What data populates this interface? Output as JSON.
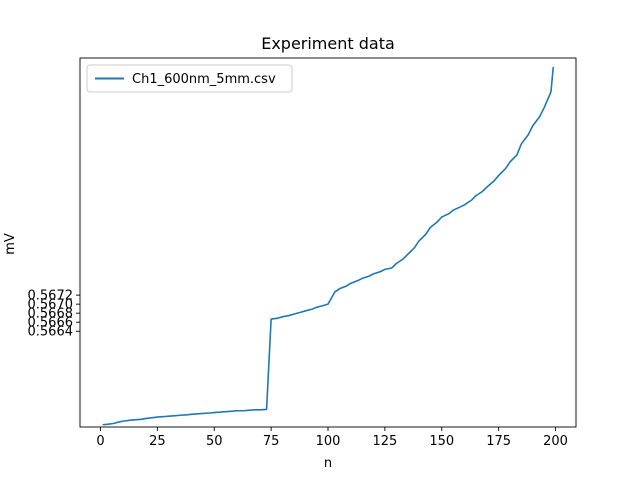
{
  "chart_data": {
    "type": "line",
    "title": "Experiment data",
    "xlabel": "n",
    "ylabel": "mV",
    "xlim": [
      -9,
      209
    ],
    "ylim": [
      0.56428,
      0.57245
    ],
    "grid": false,
    "legend_position": "top-left",
    "x_ticks": [
      0,
      25,
      50,
      75,
      100,
      125,
      150,
      175,
      200
    ],
    "x_tick_labels": [
      "0",
      "25",
      "50",
      "75",
      "100",
      "125",
      "150",
      "175",
      "200"
    ],
    "y_ticks": [
      0.5664,
      0.5666,
      0.5668,
      0.567,
      0.5672
    ],
    "y_tick_labels": [
      "0.5664",
      "0.5666",
      "0.5668",
      "0.5670",
      "0.5672"
    ],
    "series": [
      {
        "name": "Ch1_600nm_5mm.csv",
        "color": "#1f77b4",
        "x": [
          1,
          3,
          6,
          8,
          10,
          13,
          15,
          18,
          20,
          22,
          25,
          28,
          30,
          33,
          35,
          38,
          40,
          42,
          45,
          48,
          50,
          53,
          55,
          58,
          60,
          63,
          65,
          68,
          70,
          73,
          75,
          78,
          80,
          83,
          85,
          88,
          90,
          93,
          95,
          98,
          100,
          103,
          105,
          108,
          110,
          113,
          115,
          118,
          120,
          123,
          125,
          128,
          130,
          133,
          135,
          138,
          140,
          143,
          145,
          148,
          150,
          153,
          155,
          158,
          160,
          163,
          165,
          168,
          170,
          173,
          175,
          178,
          180,
          183,
          185,
          188,
          190,
          193,
          195,
          198,
          199
        ],
        "y": [
          0.56433,
          0.56434,
          0.56436,
          0.56439,
          0.56441,
          0.56443,
          0.56444,
          0.56445,
          0.56447,
          0.56448,
          0.5645,
          0.56451,
          0.56452,
          0.56453,
          0.56454,
          0.56455,
          0.56456,
          0.56457,
          0.56458,
          0.56459,
          0.5646,
          0.56461,
          0.56462,
          0.56463,
          0.56464,
          0.56464,
          0.56465,
          0.56466,
          0.56466,
          0.56467,
          0.56667,
          0.56669,
          0.56672,
          0.56675,
          0.56678,
          0.56682,
          0.56685,
          0.56689,
          0.56693,
          0.56697,
          0.567,
          0.56727,
          0.56734,
          0.5674,
          0.56746,
          0.56752,
          0.56757,
          0.56762,
          0.56767,
          0.56772,
          0.56777,
          0.5678,
          0.5679,
          0.568,
          0.5681,
          0.56825,
          0.5684,
          0.56855,
          0.5687,
          0.56882,
          0.56893,
          0.569,
          0.56908,
          0.56915,
          0.5692,
          0.5693,
          0.5694,
          0.5695,
          0.5696,
          0.56973,
          0.56985,
          0.57,
          0.57015,
          0.5703,
          0.57055,
          0.57075,
          0.57095,
          0.57115,
          0.57135,
          0.5717,
          0.57225
        ]
      }
    ]
  }
}
